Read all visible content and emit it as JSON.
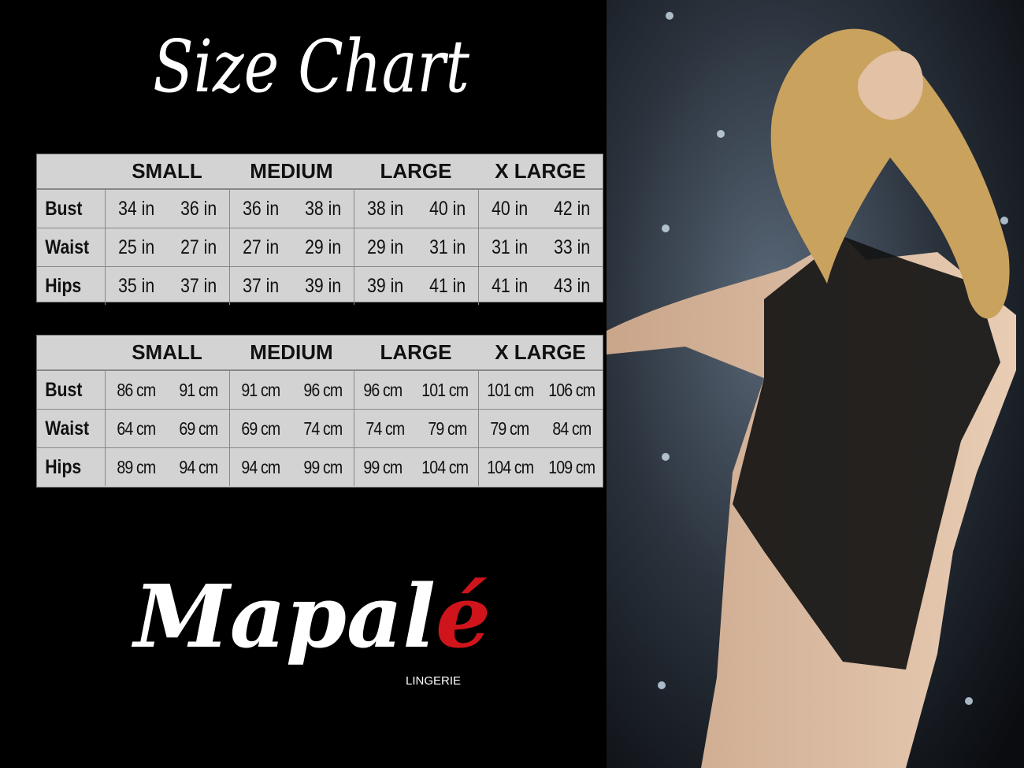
{
  "title": "Size Chart",
  "sizes": [
    "SMALL",
    "MEDIUM",
    "LARGE",
    "X LARGE"
  ],
  "inches_table": {
    "rows": [
      {
        "label": "Bust",
        "values": [
          "34 in",
          "36 in",
          "36 in",
          "38 in",
          "38 in",
          "40 in",
          "40 in",
          "42 in"
        ]
      },
      {
        "label": "Waist",
        "values": [
          "25 in",
          "27 in",
          "27 in",
          "29 in",
          "29 in",
          "31 in",
          "31 in",
          "33 in"
        ]
      },
      {
        "label": "Hips",
        "values": [
          "35 in",
          "37 in",
          "37 in",
          "39 in",
          "39 in",
          "41 in",
          "41 in",
          "43 in"
        ]
      }
    ]
  },
  "cm_table": {
    "rows": [
      {
        "label": "Bust",
        "values": [
          "86 cm",
          "91 cm",
          "91 cm",
          "96 cm",
          "96 cm",
          "101 cm",
          "101 cm",
          "106 cm"
        ]
      },
      {
        "label": "Waist",
        "values": [
          "64 cm",
          "69 cm",
          "69 cm",
          "74 cm",
          "74 cm",
          "79  cm",
          "79 cm",
          "84 cm"
        ]
      },
      {
        "label": "Hips",
        "values": [
          "89 cm",
          "94 cm",
          "94 cm",
          "99 cm",
          "99 cm",
          "104 cm",
          "104 cm",
          "109 cm"
        ]
      }
    ]
  },
  "logo": {
    "text_main": "Mapal",
    "text_accent": "é",
    "tagline": "LINGERIE"
  },
  "colors": {
    "background": "#000000",
    "table": "#d3d3d3",
    "logo_accent": "#d0141b"
  }
}
